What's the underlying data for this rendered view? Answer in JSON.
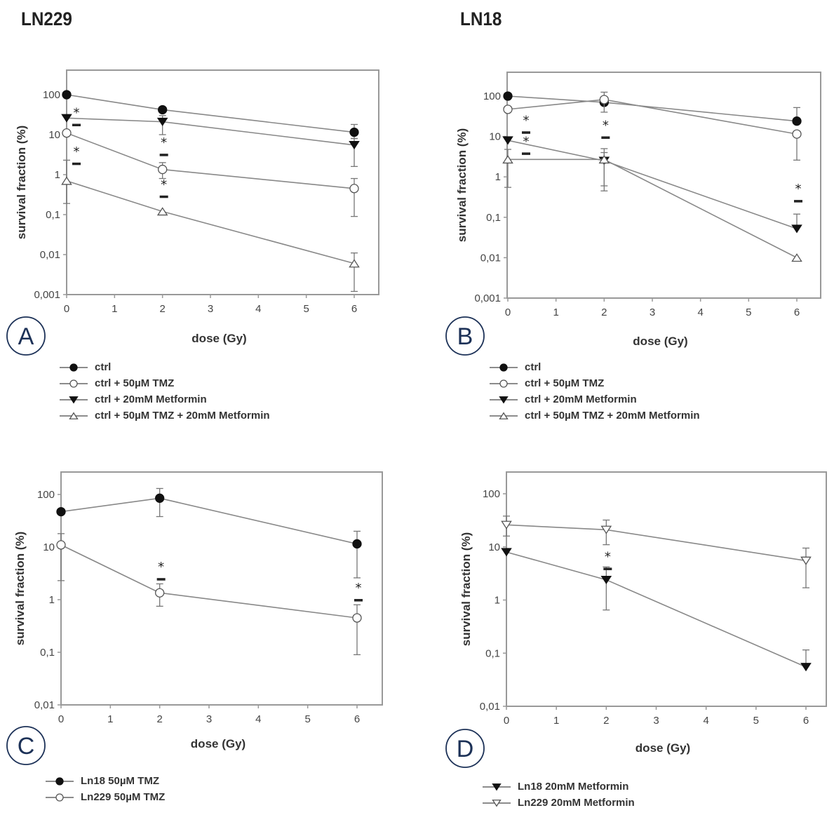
{
  "titles": {
    "left": "LN229",
    "right": "LN18"
  },
  "colors": {
    "line": "#888888",
    "marker": "#111111",
    "frame": "#999999",
    "letter": "#1c3157"
  },
  "chart_data": [
    {
      "id": "A",
      "type": "line",
      "panel_label": "A",
      "cell_line": "LN229",
      "xlabel": "dose (Gy)",
      "ylabel": "survival fraction (%)",
      "yscale": "log",
      "ylim": [
        0.001,
        400
      ],
      "xlim": [
        0,
        6.6
      ],
      "xticks": [
        0,
        1,
        2,
        3,
        4,
        5,
        6
      ],
      "yticks": [
        0.001,
        0.01,
        0.1,
        1,
        10,
        100
      ],
      "ytick_labels": [
        "0,001",
        "0,01",
        "0,1",
        "1",
        "10",
        "100"
      ],
      "x": [
        0,
        2,
        6
      ],
      "series": [
        {
          "name": "ctrl",
          "marker": "filled-circle",
          "values": [
            100,
            42,
            11.5
          ],
          "err_low": [
            null,
            null,
            8
          ],
          "err_high": [
            null,
            null,
            18
          ]
        },
        {
          "name": "ctrl  + 50µM TMZ",
          "marker": "open-circle",
          "values": [
            11,
            1.35,
            0.45
          ],
          "err_low": [
            null,
            0.8,
            0.09
          ],
          "err_high": [
            null,
            2,
            0.8
          ]
        },
        {
          "name": "ctrl + 20mM Metformin",
          "marker": "filled-triangle-down",
          "values": [
            26,
            21,
            5.5
          ],
          "err_low": [
            null,
            10,
            1.6
          ],
          "err_high": [
            null,
            30,
            8
          ]
        },
        {
          "name": "ctrl + 50µM TMZ + 20mM Metformin",
          "marker": "open-triangle-up",
          "values": [
            0.7,
            0.12,
            0.006
          ],
          "err_low": [
            0.19,
            null,
            0.0012
          ],
          "err_high": [
            2.3,
            null,
            0.011
          ]
        }
      ],
      "annotations": [
        {
          "x": 0,
          "text": "*",
          "near": 28
        },
        {
          "x": 0,
          "text": "*",
          "near": 3
        },
        {
          "x": 2,
          "text": "*",
          "near": 5
        },
        {
          "x": 2,
          "text": "*",
          "near": 0.45
        }
      ],
      "legend": [
        "ctrl",
        "ctrl  + 50µM TMZ",
        "ctrl + 20mM Metformin",
        "ctrl + 50µM TMZ + 20mM Metformin"
      ],
      "legend_position": "bottom"
    },
    {
      "id": "B",
      "type": "line",
      "panel_label": "B",
      "cell_line": "LN18",
      "xlabel": "dose (Gy)",
      "ylabel": "survival fraction (%)",
      "yscale": "log",
      "ylim": [
        0.001,
        400
      ],
      "xlim": [
        0,
        6.5
      ],
      "xticks": [
        0,
        1,
        2,
        3,
        4,
        5,
        6
      ],
      "yticks": [
        0.001,
        0.01,
        0.1,
        1,
        10,
        100
      ],
      "ytick_labels": [
        "0,001",
        "0,01",
        "0,1",
        "1",
        "10",
        "100"
      ],
      "x": [
        0,
        2,
        6
      ],
      "series": [
        {
          "name": "ctrl",
          "marker": "filled-circle",
          "values": [
            100,
            70,
            24
          ],
          "err_low": [
            null,
            null,
            null
          ],
          "err_high": [
            null,
            null,
            52
          ]
        },
        {
          "name": "ctrl + 50µM TMZ",
          "marker": "open-circle",
          "values": [
            47,
            82,
            11.5
          ],
          "err_low": [
            null,
            40,
            2.6
          ],
          "err_high": [
            null,
            125,
            null
          ]
        },
        {
          "name": "ctrl + 20mM Metformin",
          "marker": "filled-triangle-down",
          "values": [
            8,
            2.5,
            0.052
          ],
          "err_low": [
            null,
            0.45,
            null
          ],
          "err_high": [
            null,
            5,
            0.12
          ]
        },
        {
          "name": "ctrl + 50µM TMZ + 20mM Metformin",
          "marker": "open-triangle-up",
          "values": [
            2.7,
            2.7,
            0.01
          ],
          "err_low": [
            0.55,
            0.6,
            null
          ],
          "err_high": [
            4.8,
            4,
            null
          ]
        }
      ],
      "annotations": [
        {
          "x": 0,
          "text": "*",
          "near": 20
        },
        {
          "x": 0,
          "text": "*",
          "near": 6
        },
        {
          "x": 2,
          "text": "*",
          "near": 15
        },
        {
          "x": 6,
          "text": "*",
          "near": 0.4
        }
      ],
      "legend": [
        "ctrl",
        "ctrl + 50µM TMZ",
        "ctrl + 20mM Metformin",
        "ctrl + 50µM TMZ + 20mM Metformin"
      ],
      "legend_position": "bottom"
    },
    {
      "id": "C",
      "type": "line",
      "panel_label": "C",
      "xlabel": "dose (Gy)",
      "ylabel": "survival fraction (%)",
      "yscale": "log",
      "ylim": [
        0.01,
        250
      ],
      "xlim": [
        0,
        6.5
      ],
      "xticks": [
        0,
        1,
        2,
        3,
        4,
        5,
        6
      ],
      "yticks": [
        0.01,
        0.1,
        1,
        10,
        100
      ],
      "ytick_labels": [
        "0,01",
        "0,1",
        "1",
        "10",
        "100"
      ],
      "x": [
        0,
        2,
        6
      ],
      "series": [
        {
          "name": "Ln18 50µM TMZ",
          "marker": "filled-circle",
          "values": [
            47,
            85,
            11.5
          ],
          "err_low": [
            null,
            38,
            2.6
          ],
          "err_high": [
            null,
            130,
            20
          ]
        },
        {
          "name": "Ln229 50µM TMZ",
          "marker": "open-circle",
          "values": [
            11,
            1.35,
            0.45
          ],
          "err_low": [
            2.3,
            0.75,
            0.09
          ],
          "err_high": [
            18,
            2,
            0.8
          ]
        }
      ],
      "annotations": [
        {
          "x": 2,
          "text": "*",
          "near": 3.5
        },
        {
          "x": 6,
          "text": "*",
          "near": 1.4
        }
      ],
      "legend": [
        "Ln18 50µM TMZ",
        "Ln229 50µM TMZ"
      ],
      "legend_position": "bottom"
    },
    {
      "id": "D",
      "type": "line",
      "panel_label": "D",
      "xlabel": "dose (Gy)",
      "ylabel": "survival fraction (%)",
      "yscale": "log",
      "ylim": [
        0.01,
        250
      ],
      "xlim": [
        0,
        6.4
      ],
      "xticks": [
        0,
        1,
        2,
        3,
        4,
        5,
        6
      ],
      "yticks": [
        0.01,
        0.1,
        1,
        10,
        100
      ],
      "ytick_labels": [
        "0,01",
        "0,1",
        "1",
        "10",
        "100"
      ],
      "x": [
        0,
        2,
        6
      ],
      "series": [
        {
          "name": "Ln18 20mM Metformin",
          "marker": "filled-triangle-down",
          "values": [
            8,
            2.4,
            0.055
          ],
          "err_low": [
            null,
            0.65,
            null
          ],
          "err_high": [
            null,
            4.2,
            0.115
          ]
        },
        {
          "name": "Ln229 20mM Metformin",
          "marker": "open-triangle-down",
          "values": [
            26,
            21,
            5.5
          ],
          "err_low": [
            16,
            11,
            1.7
          ],
          "err_high": [
            38,
            32,
            9.5
          ]
        }
      ],
      "annotations": [
        {
          "x": 2,
          "text": "*",
          "near": 5.5
        }
      ],
      "legend": [
        "Ln18 20mM Metformin",
        "Ln229 20mM Metformin"
      ],
      "legend_position": "bottom"
    }
  ]
}
